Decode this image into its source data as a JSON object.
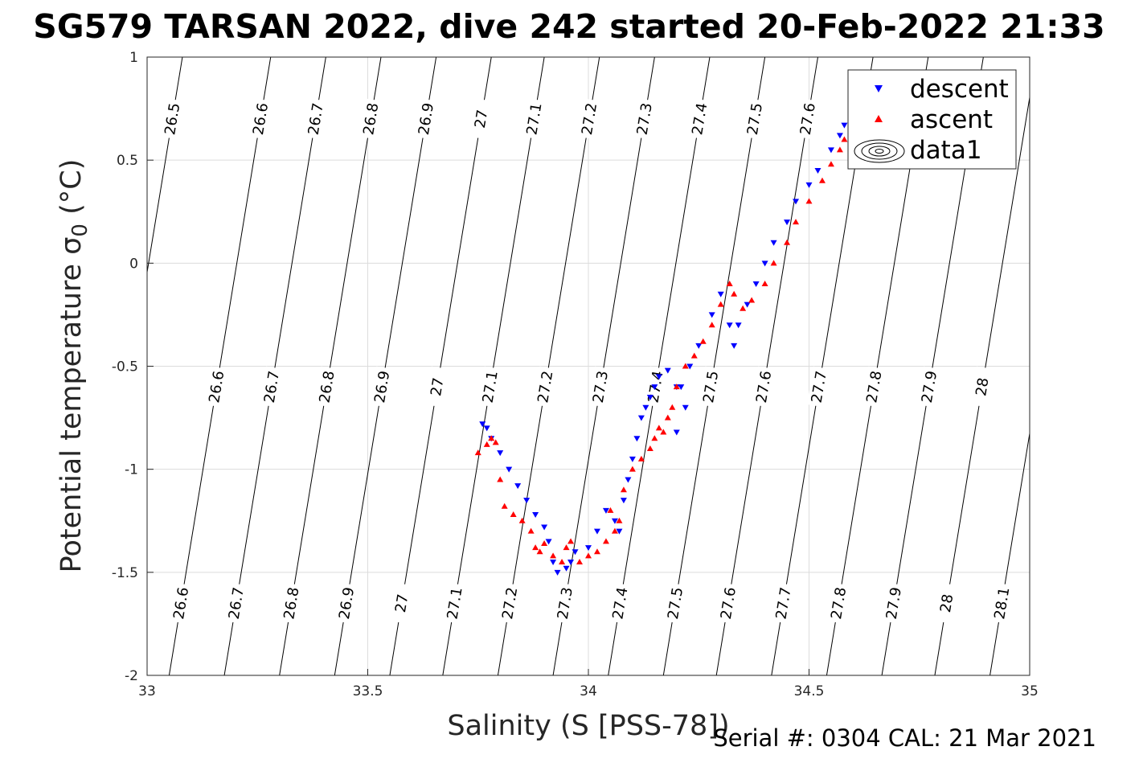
{
  "chart_data": {
    "type": "scatter",
    "title": "SG579 TARSAN 2022, dive 242 started 20-Feb-2022 21:33",
    "xlabel": "Salinity (S [PSS-78])",
    "ylabel": "Potential temperature",
    "ylabel_symbol": "σ",
    "ylabel_subscript": "0",
    "ylabel_unit": "(°C)",
    "footer": "Serial #: 0304  CAL: 21 Mar 2021",
    "xlim": [
      33,
      35
    ],
    "ylim": [
      -2,
      1
    ],
    "xticks": [
      33,
      33.5,
      34,
      34.5,
      35
    ],
    "xtick_labels": [
      "33",
      "33.5",
      "34",
      "34.5",
      "35"
    ],
    "yticks": [
      -2,
      -1.5,
      -1,
      -0.5,
      0,
      0.5,
      1
    ],
    "ytick_labels": [
      "-2",
      "-1.5",
      "-1",
      "-0.5",
      "0",
      "0.5",
      "1"
    ],
    "grid": true,
    "legend_position": "top-right",
    "legend": [
      {
        "label": "descent",
        "marker": "triangle-down",
        "color": "#0000ff"
      },
      {
        "label": "ascent",
        "marker": "triangle-up",
        "color": "#ff0000"
      },
      {
        "label": "data1",
        "marker": "contour",
        "color": "#000000"
      }
    ],
    "isopycnals": [
      {
        "label": "26.5",
        "s_at_tmin": 32.85,
        "s_at_tmax": 33.08
      },
      {
        "label": "26.6",
        "s_at_tmin": 33.05,
        "s_at_tmax": 33.28
      },
      {
        "label": "26.7",
        "s_at_tmin": 33.175,
        "s_at_tmax": 33.405
      },
      {
        "label": "26.8",
        "s_at_tmin": 33.3,
        "s_at_tmax": 33.53
      },
      {
        "label": "26.9",
        "s_at_tmin": 33.425,
        "s_at_tmax": 33.655
      },
      {
        "label": "27",
        "s_at_tmin": 33.55,
        "s_at_tmax": 33.78
      },
      {
        "label": "27.1",
        "s_at_tmin": 33.67,
        "s_at_tmax": 33.9
      },
      {
        "label": "27.2",
        "s_at_tmin": 33.795,
        "s_at_tmax": 34.025
      },
      {
        "label": "27.3",
        "s_at_tmin": 33.92,
        "s_at_tmax": 34.15
      },
      {
        "label": "27.4",
        "s_at_tmin": 34.045,
        "s_at_tmax": 34.275
      },
      {
        "label": "27.5",
        "s_at_tmin": 34.17,
        "s_at_tmax": 34.4
      },
      {
        "label": "27.6",
        "s_at_tmin": 34.29,
        "s_at_tmax": 34.52
      },
      {
        "label": "27.7",
        "s_at_tmin": 34.415,
        "s_at_tmax": 34.645
      },
      {
        "label": "27.8",
        "s_at_tmin": 34.54,
        "s_at_tmax": 34.77
      },
      {
        "label": "27.9",
        "s_at_tmin": 34.665,
        "s_at_tmax": 34.895
      },
      {
        "label": "28",
        "s_at_tmin": 34.785,
        "s_at_tmax": 35.015
      },
      {
        "label": "28.1",
        "s_at_tmin": 34.91,
        "s_at_tmax": 35.14
      }
    ],
    "series": [
      {
        "name": "descent",
        "color": "#0000ff",
        "marker": "triangle-down",
        "x": [
          33.76,
          33.77,
          33.78,
          33.8,
          33.82,
          33.84,
          33.86,
          33.88,
          33.9,
          33.91,
          33.92,
          33.93,
          33.95,
          33.96,
          33.97,
          34.0,
          34.02,
          34.04,
          34.06,
          34.07,
          34.08,
          34.09,
          34.1,
          34.11,
          34.12,
          34.13,
          34.14,
          34.15,
          34.16,
          34.18,
          34.2,
          34.22,
          34.2,
          34.21,
          34.23,
          34.25,
          34.28,
          34.3,
          34.32,
          34.33,
          34.34,
          34.36,
          34.38,
          34.4,
          34.42,
          34.45,
          34.47,
          34.5,
          34.52,
          34.55,
          34.57,
          34.58
        ],
        "y": [
          -0.78,
          -0.8,
          -0.85,
          -0.92,
          -1.0,
          -1.08,
          -1.15,
          -1.22,
          -1.28,
          -1.35,
          -1.45,
          -1.5,
          -1.48,
          -1.45,
          -1.4,
          -1.38,
          -1.3,
          -1.2,
          -1.25,
          -1.3,
          -1.15,
          -1.05,
          -0.95,
          -0.85,
          -0.75,
          -0.7,
          -0.65,
          -0.6,
          -0.55,
          -0.52,
          -0.6,
          -0.7,
          -0.82,
          -0.6,
          -0.5,
          -0.4,
          -0.25,
          -0.15,
          -0.3,
          -0.4,
          -0.3,
          -0.2,
          -0.1,
          0.0,
          0.1,
          0.2,
          0.3,
          0.38,
          0.45,
          0.55,
          0.62,
          0.67
        ]
      },
      {
        "name": "ascent",
        "color": "#ff0000",
        "marker": "triangle-up",
        "x": [
          33.75,
          33.77,
          33.78,
          33.79,
          33.8,
          33.81,
          33.83,
          33.85,
          33.87,
          33.88,
          33.89,
          33.9,
          33.92,
          33.94,
          33.95,
          33.96,
          33.98,
          34.0,
          34.02,
          34.04,
          34.05,
          34.06,
          34.07,
          34.08,
          34.1,
          34.12,
          34.14,
          34.15,
          34.16,
          34.17,
          34.18,
          34.19,
          34.2,
          34.22,
          34.24,
          34.26,
          34.28,
          34.3,
          34.32,
          34.33,
          34.35,
          34.37,
          34.4,
          34.42,
          34.45,
          34.47,
          34.5,
          34.53,
          34.55,
          34.57,
          34.58
        ],
        "y": [
          -0.92,
          -0.88,
          -0.85,
          -0.87,
          -1.05,
          -1.18,
          -1.22,
          -1.25,
          -1.3,
          -1.38,
          -1.4,
          -1.36,
          -1.42,
          -1.45,
          -1.38,
          -1.35,
          -1.45,
          -1.42,
          -1.4,
          -1.35,
          -1.2,
          -1.3,
          -1.25,
          -1.1,
          -1.0,
          -0.95,
          -0.9,
          -0.85,
          -0.8,
          -0.82,
          -0.75,
          -0.7,
          -0.6,
          -0.5,
          -0.45,
          -0.38,
          -0.3,
          -0.2,
          -0.1,
          -0.15,
          -0.22,
          -0.18,
          -0.1,
          0.0,
          0.1,
          0.2,
          0.3,
          0.4,
          0.48,
          0.55,
          0.6
        ]
      }
    ]
  }
}
